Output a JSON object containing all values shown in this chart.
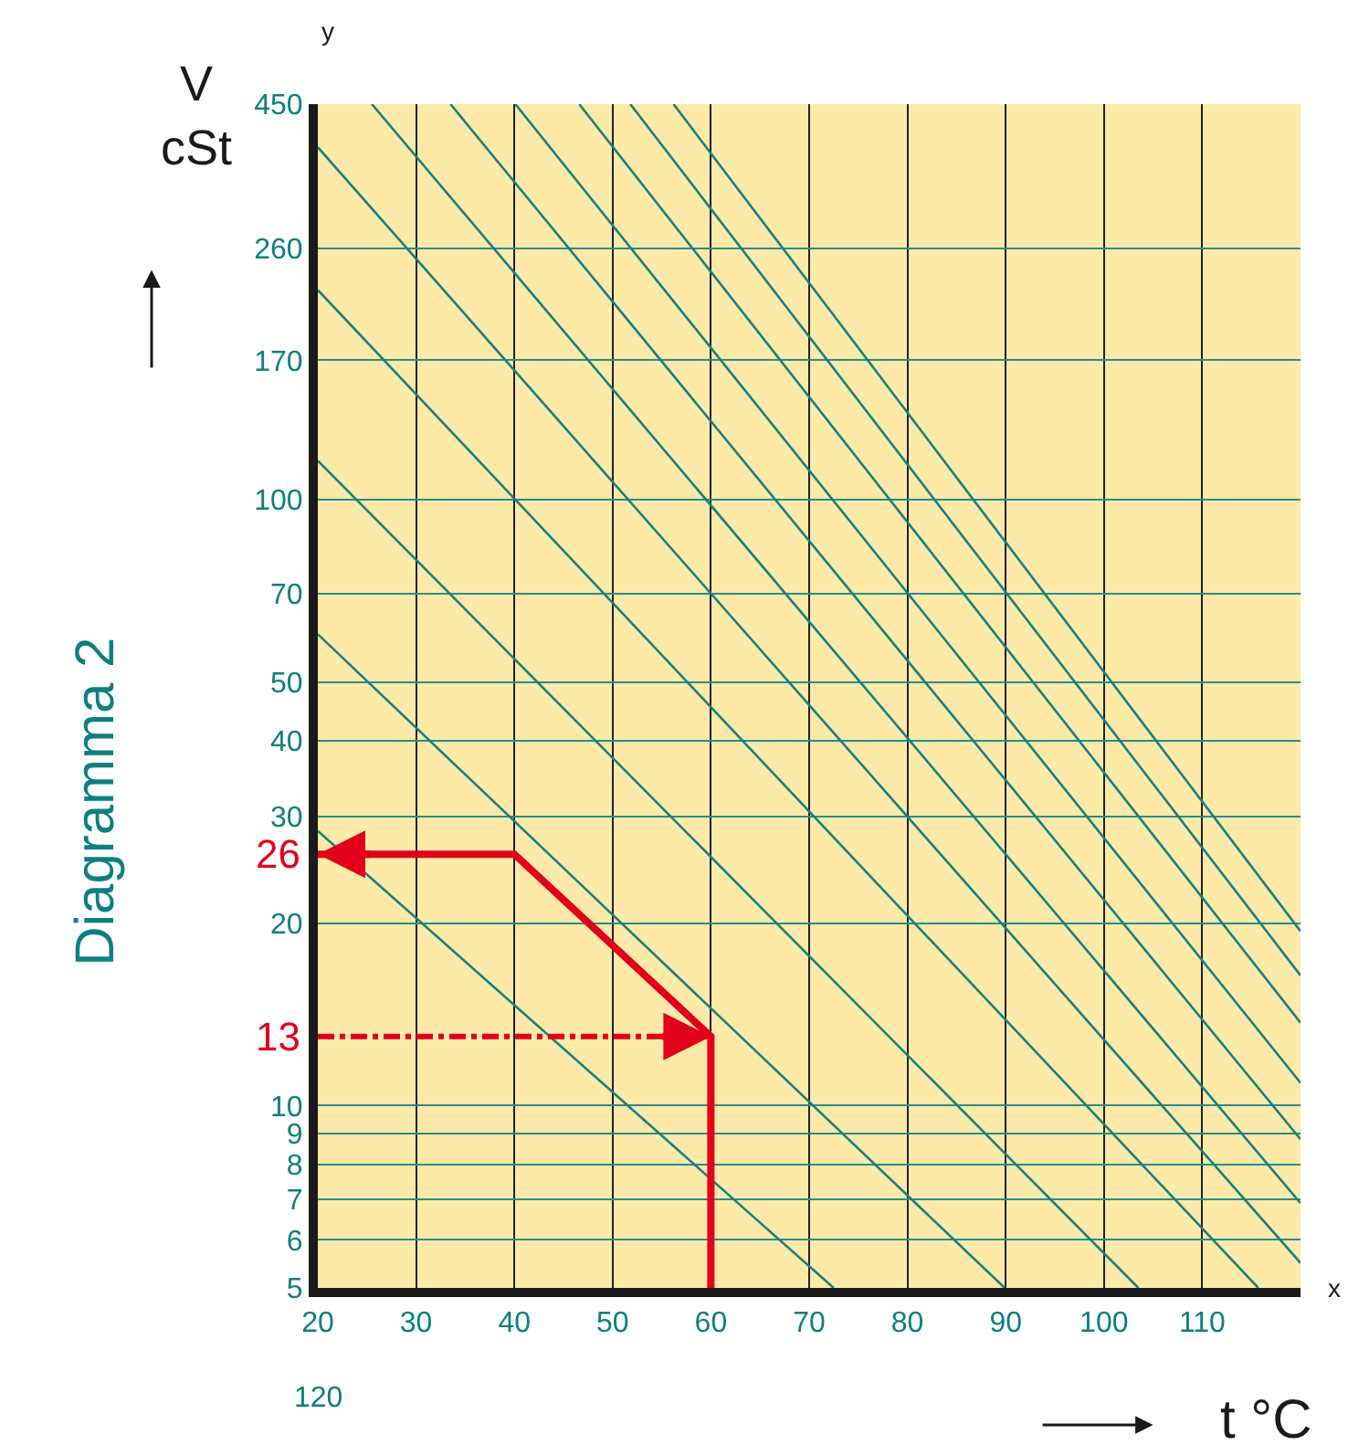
{
  "chart_data": {
    "type": "line",
    "title": "Diagramma 2",
    "xlabel": "t °C",
    "ylabel": "V cSt",
    "annotations": [
      "120",
      "y",
      "x",
      {
        "text": "26",
        "x": 20,
        "y": 26
      },
      {
        "text": "13",
        "x": 60,
        "y": 13
      }
    ],
    "xlim": [
      20,
      120
    ],
    "xticks": [
      20,
      30,
      40,
      50,
      60,
      70,
      80,
      90,
      100,
      110
    ],
    "ylim": [
      5,
      450
    ],
    "yticks": [
      5,
      6,
      7,
      8,
      9,
      10,
      20,
      30,
      40,
      50,
      70,
      100,
      170,
      260,
      450
    ],
    "grid": true,
    "legend": false,
    "marker": "none",
    "log": true,
    "series": [
      {
        "color": "#17807e",
        "x": [
          56.2,
          120
        ],
        "values": [
          450,
          19.4
        ]
      },
      {
        "color": "#17807e",
        "x": [
          51.8,
          120
        ],
        "values": [
          450,
          16.4
        ]
      },
      {
        "color": "#17807e",
        "x": [
          46.6,
          120
        ],
        "values": [
          450,
          13.7
        ]
      },
      {
        "color": "#17807e",
        "x": [
          40.1,
          120
        ],
        "values": [
          450,
          10.9
        ]
      },
      {
        "color": "#17807e",
        "x": [
          33.5,
          120
        ],
        "values": [
          450,
          8.8
        ]
      },
      {
        "color": "#17807e",
        "x": [
          25.5,
          120
        ],
        "values": [
          450,
          6.9
        ]
      },
      {
        "color": "#17807e",
        "x": [
          20,
          120
        ],
        "values": [
          382,
          5.5
        ]
      },
      {
        "color": "#17807e",
        "x": [
          20,
          115.7
        ],
        "values": [
          222,
          5
        ]
      },
      {
        "color": "#17807e",
        "x": [
          20,
          103.5
        ],
        "values": [
          116,
          5
        ]
      },
      {
        "color": "#17807e",
        "x": [
          20,
          89.9
        ],
        "values": [
          60,
          5
        ]
      },
      {
        "color": "#17807e",
        "x": [
          20,
          72.5
        ],
        "values": [
          28.4,
          5
        ]
      },
      {
        "color": "#e2001a",
        "x": [
          60,
          60,
          40,
          20
        ],
        "values": [
          5,
          13,
          26,
          26
        ]
      }
    ]
  }
}
